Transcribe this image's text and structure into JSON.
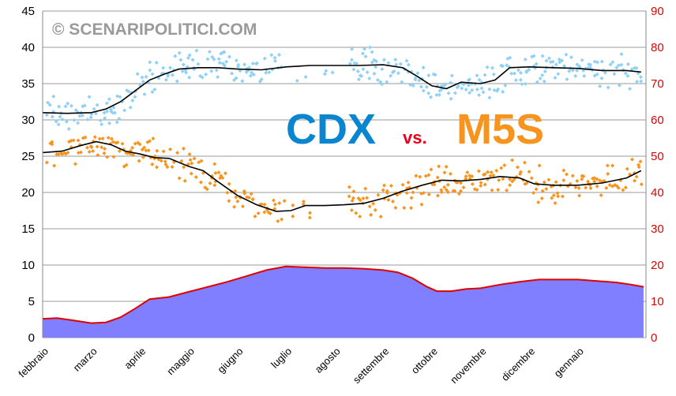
{
  "watermark": "© SCENARIPOLITICI.COM",
  "title": {
    "left": "CDX",
    "middle": "vs.",
    "right": "M5S"
  },
  "colors": {
    "cdx_points": "#8fd0f5",
    "m5s_points": "#f7941d",
    "trend": "#000000",
    "gap_fill": "#7f7fff",
    "gap_line": "#e00000",
    "title_cdx": "#0a86d0",
    "title_vs": "#e8001a",
    "title_m5s": "#f7941d",
    "right_axis": "#e00000",
    "grid": "#9a9a9a"
  },
  "chart_data": {
    "type": "scatter",
    "x_unit": "months",
    "xlim": [
      0,
      12.4
    ],
    "x_categories": [
      "febbraio",
      "marzo",
      "aprile",
      "maggio",
      "giugno",
      "luglio",
      "agosto",
      "settembre",
      "ottobre",
      "novembre",
      "dicembre",
      "gennaio"
    ],
    "y_left": {
      "range": [
        0,
        45
      ],
      "ticks": [
        0,
        5,
        10,
        15,
        20,
        25,
        30,
        35,
        40,
        45
      ]
    },
    "y_right": {
      "range": [
        0,
        90
      ],
      "ticks": [
        0,
        10,
        20,
        30,
        40,
        50,
        60,
        70,
        80,
        90
      ]
    },
    "grid": true,
    "series": [
      {
        "name": "CDX",
        "kind": "points",
        "axis": "left",
        "trend": [
          [
            0,
            31.0
          ],
          [
            0.5,
            30.9
          ],
          [
            1.0,
            31.0
          ],
          [
            1.3,
            31.5
          ],
          [
            1.6,
            32.5
          ],
          [
            1.9,
            34.0
          ],
          [
            2.2,
            35.5
          ],
          [
            2.5,
            36.3
          ],
          [
            2.8,
            37.0
          ],
          [
            3.2,
            37.2
          ],
          [
            3.6,
            37.2
          ],
          [
            4.0,
            37.0
          ],
          [
            4.5,
            36.9
          ],
          [
            5.0,
            37.3
          ],
          [
            5.5,
            37.5
          ],
          [
            6.0,
            37.5
          ],
          [
            6.5,
            37.5
          ],
          [
            7.0,
            37.6
          ],
          [
            7.4,
            37.2
          ],
          [
            7.7,
            36.0
          ],
          [
            8.0,
            34.7
          ],
          [
            8.3,
            34.3
          ],
          [
            8.6,
            35.2
          ],
          [
            9.0,
            35.0
          ],
          [
            9.3,
            35.5
          ],
          [
            9.6,
            37.2
          ],
          [
            10.0,
            37.3
          ],
          [
            10.5,
            37.2
          ],
          [
            11.0,
            37.1
          ],
          [
            11.5,
            36.8
          ],
          [
            12.0,
            36.8
          ],
          [
            12.3,
            36.6
          ]
        ]
      },
      {
        "name": "M5S",
        "kind": "points",
        "axis": "left",
        "trend": [
          [
            0,
            25.5
          ],
          [
            0.4,
            25.7
          ],
          [
            0.8,
            26.5
          ],
          [
            1.1,
            27.0
          ],
          [
            1.4,
            26.6
          ],
          [
            1.7,
            25.7
          ],
          [
            2.0,
            25.3
          ],
          [
            2.3,
            24.8
          ],
          [
            2.6,
            24.7
          ],
          [
            3.0,
            23.6
          ],
          [
            3.3,
            23.0
          ],
          [
            3.6,
            21.5
          ],
          [
            4.0,
            19.6
          ],
          [
            4.4,
            18.3
          ],
          [
            4.8,
            17.4
          ],
          [
            5.1,
            17.5
          ],
          [
            5.4,
            18.2
          ],
          [
            5.8,
            18.2
          ],
          [
            6.2,
            18.3
          ],
          [
            6.6,
            18.5
          ],
          [
            7.0,
            19.2
          ],
          [
            7.4,
            20.2
          ],
          [
            7.8,
            21.0
          ],
          [
            8.2,
            21.7
          ],
          [
            8.6,
            21.6
          ],
          [
            9.0,
            21.8
          ],
          [
            9.4,
            22.2
          ],
          [
            9.8,
            22.0
          ],
          [
            10.1,
            21.2
          ],
          [
            10.5,
            21.0
          ],
          [
            11.0,
            21.0
          ],
          [
            11.5,
            21.3
          ],
          [
            12.0,
            22.0
          ],
          [
            12.3,
            23.0
          ]
        ]
      },
      {
        "name": "",
        "kind": "area",
        "axis": "left",
        "values": [
          [
            0,
            2.6
          ],
          [
            0.3,
            2.7
          ],
          [
            0.6,
            2.4
          ],
          [
            1.0,
            2.0
          ],
          [
            1.3,
            2.1
          ],
          [
            1.6,
            2.8
          ],
          [
            1.9,
            4.0
          ],
          [
            2.2,
            5.3
          ],
          [
            2.6,
            5.6
          ],
          [
            3.0,
            6.3
          ],
          [
            3.4,
            7.0
          ],
          [
            3.8,
            7.7
          ],
          [
            4.2,
            8.5
          ],
          [
            4.6,
            9.3
          ],
          [
            5.0,
            9.8
          ],
          [
            5.4,
            9.7
          ],
          [
            5.8,
            9.6
          ],
          [
            6.2,
            9.6
          ],
          [
            6.6,
            9.5
          ],
          [
            7.0,
            9.3
          ],
          [
            7.3,
            9.0
          ],
          [
            7.6,
            8.2
          ],
          [
            7.9,
            7.0
          ],
          [
            8.1,
            6.4
          ],
          [
            8.4,
            6.4
          ],
          [
            8.7,
            6.7
          ],
          [
            9.0,
            6.8
          ],
          [
            9.4,
            7.3
          ],
          [
            9.8,
            7.7
          ],
          [
            10.2,
            8.0
          ],
          [
            10.6,
            8.0
          ],
          [
            11.0,
            8.0
          ],
          [
            11.4,
            7.8
          ],
          [
            11.8,
            7.6
          ],
          [
            12.1,
            7.3
          ],
          [
            12.35,
            7.0
          ]
        ]
      }
    ]
  }
}
